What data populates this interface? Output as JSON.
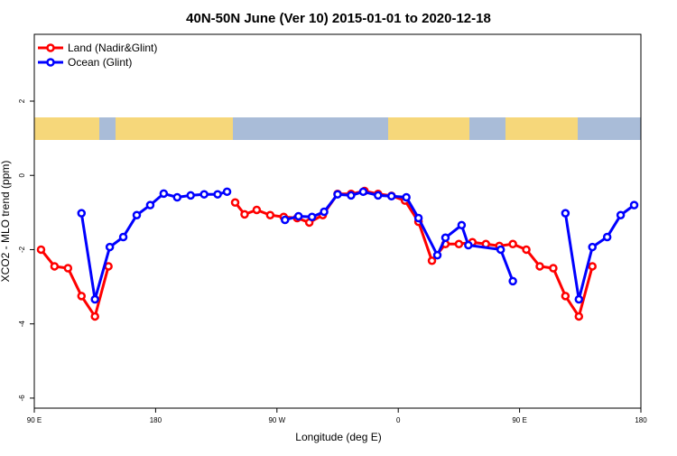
{
  "chart_data": {
    "type": "line",
    "title": "40N-50N June (Ver 10)   2015-01-01 to 2020-12-18",
    "x_label": "Longitude (deg E)",
    "y_label": "XCO2 - MLO trend (ppm)",
    "xlim": [
      90,
      540
    ],
    "ylim": [
      -6.27,
      3.8
    ],
    "xticks": [
      {
        "value": 90,
        "label": "90 E"
      },
      180,
      {
        "value": 270,
        "label": "90 W"
      },
      {
        "value": 360,
        "label": "0"
      },
      {
        "value": 450,
        "label": "90 E"
      },
      {
        "value": 540,
        "label": "180"
      }
    ],
    "yticks": [
      2,
      0,
      -2,
      -4,
      -6
    ],
    "legend": "top-left",
    "series": [
      {
        "name": "Land (Nadir&Glint)",
        "color": "#ff0000",
        "x": [
          95,
          105,
          115,
          125,
          135,
          145,
          190,
          239,
          246,
          255,
          265,
          275,
          285,
          294,
          304,
          315,
          325,
          335,
          345,
          355,
          365,
          375,
          385,
          395,
          405,
          415,
          425,
          435,
          445,
          455,
          465,
          475,
          484,
          494,
          504
        ],
        "values": [
          -2.0,
          -2.45,
          -2.5,
          -3.25,
          -3.8,
          -2.45,
          null,
          -0.73,
          -1.05,
          -0.93,
          -1.07,
          -1.12,
          -1.15,
          -1.27,
          -1.07,
          -0.5,
          -0.5,
          -0.42,
          -0.5,
          -0.55,
          -0.68,
          -1.25,
          -2.3,
          -1.85,
          -1.85,
          -1.8,
          -1.85,
          -1.9,
          -1.85,
          -2.0,
          -2.45,
          -2.5,
          -3.25,
          -3.8,
          -2.45
        ]
      },
      {
        "name": "Ocean (Glint)",
        "color": "#0000ff",
        "x": [
          125,
          135,
          146,
          156,
          166,
          176,
          186,
          196,
          206,
          216,
          226,
          233,
          255,
          276,
          286,
          296,
          305,
          315,
          325,
          334,
          345,
          355,
          366,
          375,
          389,
          395,
          407,
          412,
          436,
          445,
          465,
          484,
          494,
          504,
          515,
          525,
          535
        ],
        "values": [
          -1.02,
          -3.34,
          -1.93,
          -1.66,
          -1.07,
          -0.8,
          -0.49,
          -0.59,
          -0.54,
          -0.51,
          -0.51,
          -0.44,
          null,
          -1.2,
          -1.1,
          -1.12,
          -0.98,
          -0.51,
          -0.54,
          -0.44,
          -0.54,
          -0.56,
          -0.59,
          -1.15,
          -2.15,
          -1.68,
          -1.34,
          -1.88,
          -2.0,
          -2.85,
          null,
          -1.02,
          -3.34,
          -1.93,
          -1.66,
          -1.07,
          -0.8
        ]
      }
    ]
  }
}
